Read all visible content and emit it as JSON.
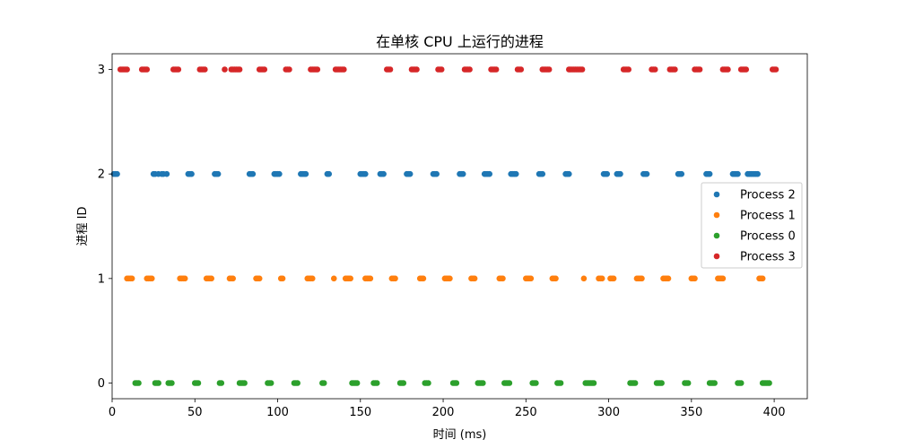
{
  "chart_data": {
    "type": "scatter",
    "title": "在单核 CPU 上运行的进程",
    "xlabel": "时间 (ms)",
    "ylabel": "进程 ID",
    "xlim": [
      0,
      420
    ],
    "ylim": [
      -0.15,
      3.15
    ],
    "xticks": [
      0,
      50,
      100,
      150,
      200,
      250,
      300,
      350,
      400
    ],
    "yticks": [
      0,
      1,
      2,
      3
    ],
    "grid": false,
    "legend_position": "center-right",
    "series": [
      {
        "name": "Process 2",
        "color": "#1f77b4",
        "y": 2,
        "x": [
          1,
          2,
          3,
          25,
          26,
          28,
          30,
          31,
          33,
          46,
          47,
          48,
          62,
          63,
          64,
          83,
          84,
          85,
          98,
          99,
          100,
          101,
          114,
          115,
          116,
          117,
          130,
          131,
          150,
          151,
          152,
          153,
          162,
          163,
          164,
          178,
          179,
          180,
          194,
          195,
          196,
          210,
          211,
          212,
          225,
          226,
          227,
          228,
          241,
          242,
          243,
          244,
          258,
          259,
          260,
          274,
          275,
          276,
          297,
          298,
          299,
          305,
          306,
          307,
          321,
          322,
          323,
          342,
          343,
          344,
          359,
          360,
          361,
          375,
          376,
          377,
          378,
          384,
          385,
          386,
          387,
          388,
          389,
          390
        ]
      },
      {
        "name": "Process 1",
        "color": "#ff7f0e",
        "y": 1,
        "x": [
          9,
          10,
          11,
          12,
          21,
          22,
          23,
          24,
          41,
          42,
          43,
          44,
          57,
          58,
          59,
          60,
          71,
          72,
          73,
          87,
          88,
          89,
          102,
          103,
          118,
          119,
          120,
          121,
          134,
          141,
          142,
          143,
          144,
          153,
          154,
          155,
          156,
          169,
          170,
          171,
          186,
          187,
          188,
          201,
          202,
          203,
          204,
          217,
          218,
          219,
          234,
          235,
          236,
          250,
          251,
          252,
          253,
          266,
          267,
          268,
          285,
          294,
          295,
          296,
          301,
          302,
          303,
          317,
          318,
          319,
          320,
          333,
          334,
          335,
          336,
          350,
          351,
          352,
          366,
          367,
          368,
          369,
          391,
          392,
          393
        ]
      },
      {
        "name": "Process 0",
        "color": "#2ca02c",
        "y": 0,
        "x": [
          14,
          15,
          16,
          26,
          27,
          28,
          34,
          35,
          36,
          50,
          51,
          52,
          65,
          66,
          77,
          78,
          79,
          80,
          94,
          95,
          96,
          110,
          111,
          112,
          127,
          128,
          145,
          146,
          147,
          148,
          158,
          159,
          160,
          174,
          175,
          176,
          189,
          190,
          191,
          206,
          207,
          208,
          221,
          222,
          223,
          224,
          237,
          238,
          239,
          240,
          254,
          255,
          256,
          269,
          270,
          271,
          286,
          287,
          288,
          289,
          290,
          291,
          313,
          314,
          315,
          316,
          329,
          330,
          331,
          332,
          346,
          347,
          348,
          361,
          362,
          363,
          364,
          378,
          379,
          380,
          393,
          394,
          395,
          396,
          397
        ]
      },
      {
        "name": "Process 3",
        "color": "#d62728",
        "y": 3,
        "x": [
          5,
          6,
          7,
          8,
          9,
          18,
          19,
          20,
          21,
          37,
          38,
          39,
          40,
          53,
          54,
          55,
          56,
          68,
          72,
          73,
          74,
          75,
          76,
          77,
          89,
          90,
          91,
          92,
          105,
          106,
          107,
          120,
          121,
          122,
          123,
          124,
          135,
          136,
          137,
          138,
          139,
          140,
          166,
          167,
          168,
          181,
          182,
          183,
          184,
          197,
          198,
          199,
          213,
          214,
          215,
          216,
          229,
          230,
          231,
          232,
          245,
          246,
          247,
          260,
          261,
          262,
          263,
          264,
          276,
          277,
          278,
          279,
          280,
          281,
          282,
          283,
          284,
          309,
          310,
          311,
          312,
          326,
          327,
          328,
          337,
          338,
          339,
          340,
          352,
          353,
          354,
          355,
          369,
          370,
          371,
          372,
          380,
          381,
          382,
          383,
          399,
          400,
          401
        ]
      }
    ]
  }
}
